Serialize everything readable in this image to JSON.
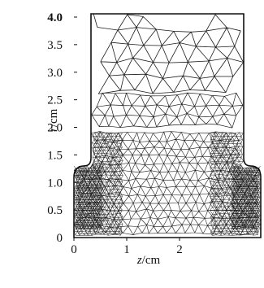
{
  "figure": {
    "r_axis": {
      "label_var": "r",
      "label_unit": "/cm",
      "ticks": [
        "0",
        "0.5",
        "1.0",
        "1.5",
        "2.0",
        "2.5",
        "3.0",
        "3.5",
        "4.0"
      ]
    },
    "z_axis": {
      "label_var": "z",
      "label_unit": "/cm",
      "ticks": [
        "0",
        "1",
        "2"
      ]
    },
    "mesh": {
      "line_color": "#1a1a1a",
      "dense_region_color": "#111111",
      "background": "#ffffff"
    }
  }
}
